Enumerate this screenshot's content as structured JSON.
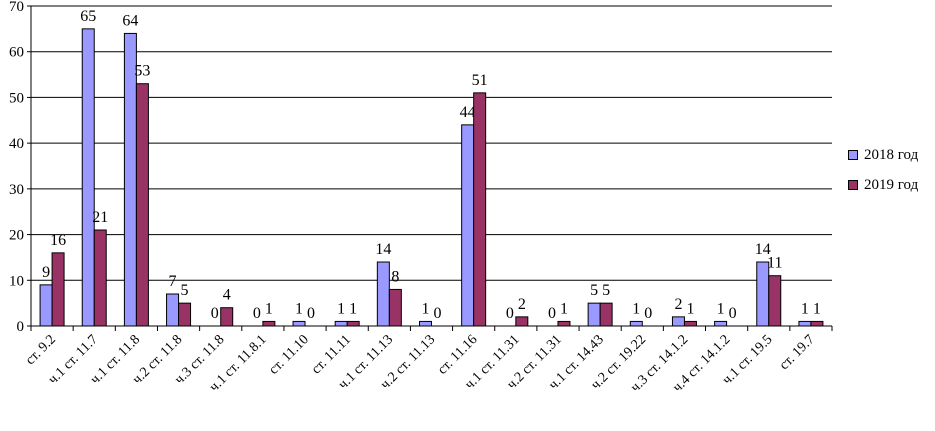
{
  "chart_data": {
    "type": "bar",
    "title": "",
    "xlabel": "",
    "ylabel": "",
    "ylim": [
      0,
      70
    ],
    "yticks": [
      0,
      10,
      20,
      30,
      40,
      50,
      60,
      70
    ],
    "grid": true,
    "legend_position": "right",
    "categories": [
      "ст. 9.2",
      "ч.1 ст. 11.7",
      "ч.1 ст. 11.8",
      "ч.2 ст. 11.8",
      "ч.3 ст. 11.8",
      "ч.1 ст. 11.8.1",
      "ст. 11.10",
      "ст. 11.11",
      "ч.1 ст. 11.13",
      "ч.2 ст. 11.13",
      "ст. 11.16",
      "ч.1 ст. 11.31",
      "ч.2 ст. 11.31",
      "ч.1 ст. 14.43",
      "ч.2 ст. 19.22",
      "ч.3 ст. 14.1.2",
      "ч.4 ст. 14.1.2",
      "ч.1 ст. 19.5",
      "ст. 19.7"
    ],
    "series": [
      {
        "name": "2018 год",
        "color": "#9999ff",
        "values": [
          9,
          65,
          64,
          7,
          0,
          0,
          1,
          1,
          14,
          1,
          44,
          0,
          0,
          5,
          1,
          2,
          1,
          14,
          1
        ]
      },
      {
        "name": "2019 год",
        "color": "#993366",
        "values": [
          16,
          21,
          53,
          5,
          4,
          1,
          0,
          1,
          8,
          0,
          51,
          2,
          1,
          5,
          0,
          1,
          0,
          11,
          1
        ]
      }
    ]
  }
}
